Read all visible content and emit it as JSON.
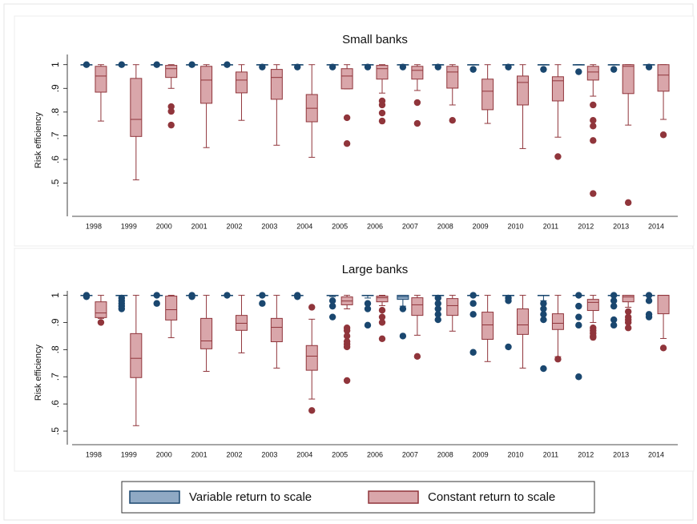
{
  "chart_data": [
    {
      "type": "box",
      "title": "Small banks",
      "ylabel": "Risk efficiency",
      "categories": [
        "1998",
        "1999",
        "2000",
        "2001",
        "2002",
        "2003",
        "2004",
        "2005",
        "2006",
        "2007",
        "2008",
        "2009",
        "2010",
        "2011",
        "2012",
        "2013",
        "2014"
      ],
      "ylim": [
        0.36,
        1.07
      ],
      "yticks": [
        {
          "value": 0.5,
          "label": ".5"
        },
        {
          "value": 0.6,
          "label": ".6"
        },
        {
          "value": 0.7,
          "label": ".7"
        },
        {
          "value": 0.8,
          "label": ".8"
        },
        {
          "value": 0.9,
          "label": ".9"
        },
        1
      ],
      "series": [
        {
          "name": "Variable return to scale",
          "color": "#8fa9c4",
          "edge": "#1a476f",
          "boxes": [
            {
              "whislo": 1,
              "q1": 1,
              "med": 1,
              "q3": 1,
              "whishi": 1,
              "fliers": [
                1
              ]
            },
            {
              "whislo": 1,
              "q1": 1,
              "med": 1,
              "q3": 1,
              "whishi": 1,
              "fliers": [
                1
              ]
            },
            {
              "whislo": 1,
              "q1": 1,
              "med": 1,
              "q3": 1,
              "whishi": 1,
              "fliers": [
                1
              ]
            },
            {
              "whislo": 1,
              "q1": 1,
              "med": 1,
              "q3": 1,
              "whishi": 1,
              "fliers": [
                1
              ]
            },
            {
              "whislo": 1,
              "q1": 1,
              "med": 1,
              "q3": 1,
              "whishi": 1,
              "fliers": [
                1
              ]
            },
            {
              "whislo": 1,
              "q1": 1,
              "med": 1,
              "q3": 1,
              "whishi": 1,
              "fliers": [
                0.99
              ]
            },
            {
              "whislo": 1,
              "q1": 1,
              "med": 1,
              "q3": 1,
              "whishi": 1,
              "fliers": [
                0.99
              ]
            },
            {
              "whislo": 1,
              "q1": 1,
              "med": 1,
              "q3": 1,
              "whishi": 1,
              "fliers": [
                0.99
              ]
            },
            {
              "whislo": 1,
              "q1": 1,
              "med": 1,
              "q3": 1,
              "whishi": 1,
              "fliers": [
                0.99
              ]
            },
            {
              "whislo": 1,
              "q1": 1,
              "med": 1,
              "q3": 1,
              "whishi": 1,
              "fliers": [
                0.99
              ]
            },
            {
              "whislo": 1,
              "q1": 1,
              "med": 1,
              "q3": 1,
              "whishi": 1,
              "fliers": [
                0.99
              ]
            },
            {
              "whislo": 1,
              "q1": 1,
              "med": 1,
              "q3": 1,
              "whishi": 1,
              "fliers": [
                0.98
              ]
            },
            {
              "whislo": 1,
              "q1": 1,
              "med": 1,
              "q3": 1,
              "whishi": 1,
              "fliers": [
                0.99
              ]
            },
            {
              "whislo": 1,
              "q1": 1,
              "med": 1,
              "q3": 1,
              "whishi": 1,
              "fliers": [
                0.98
              ]
            },
            {
              "whislo": 1,
              "q1": 1,
              "med": 1,
              "q3": 1,
              "whishi": 1,
              "fliers": [
                0.97
              ]
            },
            {
              "whislo": 1,
              "q1": 1,
              "med": 1,
              "q3": 1,
              "whishi": 1,
              "fliers": [
                0.98
              ]
            },
            {
              "whislo": 1,
              "q1": 1,
              "med": 1,
              "q3": 1,
              "whishi": 1,
              "fliers": [
                0.99
              ]
            }
          ]
        },
        {
          "name": "Constant return to scale",
          "color": "#d9a6aa",
          "edge": "#90353b",
          "boxes": [
            {
              "whislo": 0.762,
              "q1": 0.884,
              "med": 0.952,
              "q3": 0.993,
              "whishi": 1,
              "fliers": []
            },
            {
              "whislo": 0.514,
              "q1": 0.697,
              "med": 0.769,
              "q3": 0.942,
              "whishi": 1,
              "fliers": []
            },
            {
              "whislo": 0.9,
              "q1": 0.946,
              "med": 0.983,
              "q3": 0.997,
              "whishi": 1,
              "fliers": [
                0.823,
                0.803,
                0.745
              ]
            },
            {
              "whislo": 0.65,
              "q1": 0.837,
              "med": 0.935,
              "q3": 0.993,
              "whishi": 1,
              "fliers": []
            },
            {
              "whislo": 0.765,
              "q1": 0.881,
              "med": 0.935,
              "q3": 0.969,
              "whishi": 1,
              "fliers": []
            },
            {
              "whislo": 0.66,
              "q1": 0.854,
              "med": 0.946,
              "q3": 0.98,
              "whishi": 1,
              "fliers": []
            },
            {
              "whislo": 0.609,
              "q1": 0.759,
              "med": 0.816,
              "q3": 0.874,
              "whishi": 1,
              "fliers": []
            },
            {
              "whislo": 0.898,
              "q1": 0.898,
              "med": 0.952,
              "q3": 0.983,
              "whishi": 1,
              "fliers": [
                0.776,
                0.667
              ]
            },
            {
              "whislo": 0.88,
              "q1": 0.939,
              "med": 0.983,
              "q3": 0.997,
              "whishi": 1,
              "fliers": [
                0.847,
                0.83,
                0.796,
                0.762
              ]
            },
            {
              "whislo": 0.891,
              "q1": 0.939,
              "med": 0.976,
              "q3": 0.993,
              "whishi": 1,
              "fliers": [
                0.84,
                0.752
              ]
            },
            {
              "whislo": 0.83,
              "q1": 0.901,
              "med": 0.969,
              "q3": 0.993,
              "whishi": 1,
              "fliers": [
                0.765
              ]
            },
            {
              "whislo": 0.752,
              "q1": 0.81,
              "med": 0.888,
              "q3": 0.939,
              "whishi": 1,
              "fliers": []
            },
            {
              "whislo": 0.646,
              "q1": 0.83,
              "med": 0.925,
              "q3": 0.952,
              "whishi": 1,
              "fliers": []
            },
            {
              "whislo": 0.694,
              "q1": 0.847,
              "med": 0.932,
              "q3": 0.949,
              "whishi": 1,
              "fliers": [
                0.612
              ]
            },
            {
              "whislo": 0.867,
              "q1": 0.935,
              "med": 0.969,
              "q3": 0.993,
              "whishi": 1,
              "fliers": [
                0.83,
                0.765,
                0.741,
                0.68,
                0.456
              ]
            },
            {
              "whislo": 0.745,
              "q1": 0.878,
              "med": 0.993,
              "q3": 1,
              "whishi": 1,
              "fliers": [
                0.418
              ]
            },
            {
              "whislo": 0.769,
              "q1": 0.888,
              "med": 0.956,
              "q3": 1,
              "whishi": 1,
              "fliers": [
                0.704
              ]
            }
          ]
        }
      ]
    },
    {
      "type": "box",
      "title": "Large banks",
      "ylabel": "Risk efficiency",
      "categories": [
        "1998",
        "1999",
        "2000",
        "2001",
        "2002",
        "2003",
        "2004",
        "2005",
        "2006",
        "2007",
        "2008",
        "2009",
        "2010",
        "2011",
        "2012",
        "2013",
        "2014"
      ],
      "ylim": [
        0.45,
        1.04
      ],
      "yticks": [
        {
          "value": 0.5,
          "label": ".5"
        },
        {
          "value": 0.6,
          "label": ".6"
        },
        {
          "value": 0.7,
          "label": ".7"
        },
        {
          "value": 0.8,
          "label": ".8"
        },
        {
          "value": 0.9,
          "label": ".9"
        },
        1
      ],
      "series": [
        {
          "color": "#8fa9c4",
          "edge": "#1a476f",
          "boxes": [
            {
              "whislo": 1,
              "q1": 1,
              "med": 1,
              "q3": 1,
              "whishi": 1,
              "fliers": [
                1,
                0.995
              ]
            },
            {
              "whislo": 1,
              "q1": 1,
              "med": 1,
              "q3": 1,
              "whishi": 1,
              "fliers": [
                0.99,
                0.98,
                0.97,
                0.96,
                0.95
              ]
            },
            {
              "whislo": 1,
              "q1": 1,
              "med": 1,
              "q3": 1,
              "whishi": 1,
              "fliers": [
                1,
                0.97
              ]
            },
            {
              "whislo": 1,
              "q1": 1,
              "med": 1,
              "q3": 1,
              "whishi": 1,
              "fliers": [
                1,
                0.995
              ]
            },
            {
              "whislo": 1,
              "q1": 1,
              "med": 1,
              "q3": 1,
              "whishi": 1,
              "fliers": [
                1
              ]
            },
            {
              "whislo": 1,
              "q1": 1,
              "med": 1,
              "q3": 1,
              "whishi": 1,
              "fliers": [
                1,
                0.97
              ]
            },
            {
              "whislo": 1,
              "q1": 1,
              "med": 1,
              "q3": 1,
              "whishi": 1,
              "fliers": [
                1,
                0.995
              ]
            },
            {
              "whislo": 0.995,
              "q1": 1,
              "med": 1,
              "q3": 1,
              "whishi": 1,
              "fliers": [
                0.98,
                0.96,
                0.92
              ]
            },
            {
              "whislo": 0.99,
              "q1": 1,
              "med": 1,
              "q3": 1,
              "whishi": 1,
              "fliers": [
                0.97,
                0.95,
                0.89
              ]
            },
            {
              "whislo": 0.96,
              "q1": 0.985,
              "med": 0.995,
              "q3": 1,
              "whishi": 1,
              "fliers": [
                0.95,
                0.85
              ]
            },
            {
              "whislo": 1,
              "q1": 1,
              "med": 1,
              "q3": 1,
              "whishi": 1,
              "fliers": [
                0.99,
                0.97,
                0.95,
                0.93,
                0.91
              ]
            },
            {
              "whislo": 1,
              "q1": 1,
              "med": 1,
              "q3": 1,
              "whishi": 1,
              "fliers": [
                1,
                0.97,
                0.93,
                0.79
              ]
            },
            {
              "whislo": 1,
              "q1": 1,
              "med": 1,
              "q3": 1,
              "whishi": 1,
              "fliers": [
                0.99,
                0.98,
                0.81
              ]
            },
            {
              "whislo": 0.98,
              "q1": 1,
              "med": 1,
              "q3": 1,
              "whishi": 1,
              "fliers": [
                0.97,
                0.95,
                0.93,
                0.91,
                0.73
              ]
            },
            {
              "whislo": 1,
              "q1": 1,
              "med": 1,
              "q3": 1,
              "whishi": 1,
              "fliers": [
                1,
                0.96,
                0.92,
                0.89,
                0.7
              ]
            },
            {
              "whislo": 1,
              "q1": 1,
              "med": 1,
              "q3": 1,
              "whishi": 1,
              "fliers": [
                1,
                0.98,
                0.96,
                0.91,
                0.89
              ]
            },
            {
              "whislo": 1,
              "q1": 1,
              "med": 1,
              "q3": 1,
              "whishi": 1,
              "fliers": [
                1,
                0.98,
                0.93,
                0.92
              ]
            }
          ]
        },
        {
          "color": "#d9a6aa",
          "edge": "#90353b",
          "boxes": [
            {
              "whislo": 0.915,
              "q1": 0.918,
              "med": 0.935,
              "q3": 0.976,
              "whishi": 1,
              "fliers": [
                0.9
              ]
            },
            {
              "whislo": 0.52,
              "q1": 0.697,
              "med": 0.768,
              "q3": 0.859,
              "whishi": 1,
              "fliers": []
            },
            {
              "whislo": 0.844,
              "q1": 0.909,
              "med": 0.947,
              "q3": 0.997,
              "whishi": 1,
              "fliers": []
            },
            {
              "whislo": 0.72,
              "q1": 0.803,
              "med": 0.832,
              "q3": 0.915,
              "whishi": 1,
              "fliers": []
            },
            {
              "whislo": 0.788,
              "q1": 0.871,
              "med": 0.897,
              "q3": 0.926,
              "whishi": 1,
              "fliers": []
            },
            {
              "whislo": 0.732,
              "q1": 0.829,
              "med": 0.882,
              "q3": 0.915,
              "whishi": 1,
              "fliers": []
            },
            {
              "whislo": 0.618,
              "q1": 0.724,
              "med": 0.776,
              "q3": 0.815,
              "whishi": 0.912,
              "fliers": [
                0.956,
                0.576
              ]
            },
            {
              "whislo": 0.95,
              "q1": 0.965,
              "med": 0.979,
              "q3": 0.994,
              "whishi": 1,
              "fliers": [
                0.88,
                0.87,
                0.85,
                0.83,
                0.82,
                0.81,
                0.686
              ]
            },
            {
              "whislo": 0.962,
              "q1": 0.976,
              "med": 0.991,
              "q3": 0.997,
              "whishi": 1,
              "fliers": [
                0.945,
                0.92,
                0.9,
                0.84
              ]
            },
            {
              "whislo": 0.853,
              "q1": 0.926,
              "med": 0.965,
              "q3": 0.991,
              "whishi": 1,
              "fliers": [
                0.775
              ]
            },
            {
              "whislo": 0.868,
              "q1": 0.926,
              "med": 0.962,
              "q3": 0.988,
              "whishi": 1,
              "fliers": []
            },
            {
              "whislo": 0.756,
              "q1": 0.838,
              "med": 0.891,
              "q3": 0.938,
              "whishi": 1,
              "fliers": []
            },
            {
              "whislo": 0.732,
              "q1": 0.856,
              "med": 0.891,
              "q3": 0.95,
              "whishi": 1,
              "fliers": []
            },
            {
              "whislo": 0.774,
              "q1": 0.874,
              "med": 0.897,
              "q3": 0.932,
              "whishi": 1,
              "fliers": [
                0.765
              ]
            },
            {
              "whislo": 0.9,
              "q1": 0.944,
              "med": 0.974,
              "q3": 0.985,
              "whishi": 1,
              "fliers": [
                0.88,
                0.87,
                0.86,
                0.85,
                0.845
              ]
            },
            {
              "whislo": 0.956,
              "q1": 0.976,
              "med": 0.994,
              "q3": 1,
              "whishi": 1,
              "fliers": [
                0.94,
                0.92,
                0.91,
                0.9,
                0.88
              ]
            },
            {
              "whislo": 0.841,
              "q1": 0.932,
              "med": 1,
              "q3": 1,
              "whishi": 1,
              "fliers": [
                0.806
              ]
            }
          ]
        }
      ]
    }
  ]
}
